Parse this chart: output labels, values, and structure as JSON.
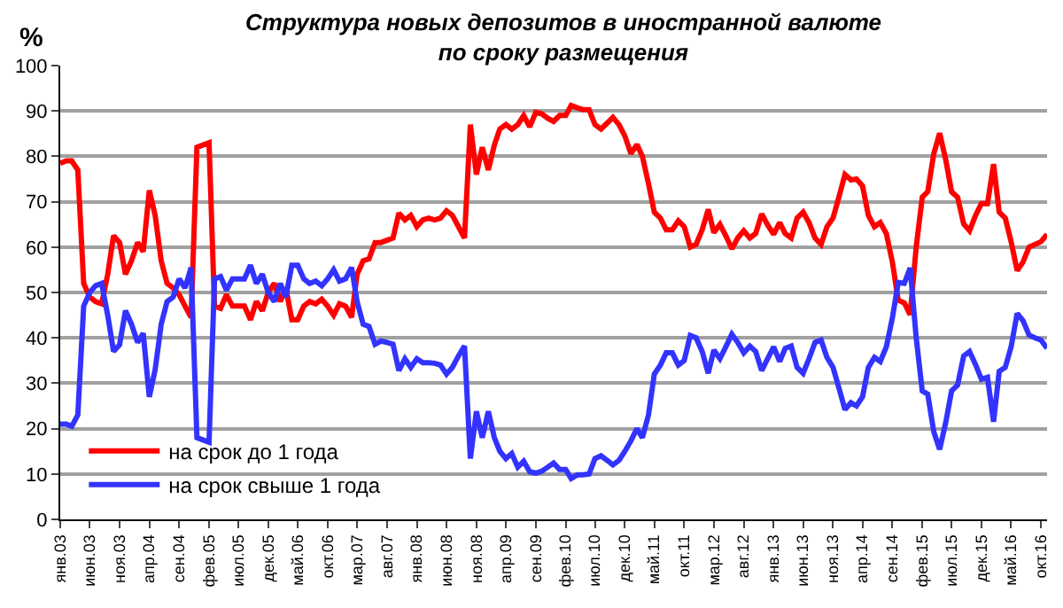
{
  "chart_data": {
    "type": "line",
    "title": "Структура новых депозитов в иностранной валюте\nпо сроку размещения",
    "ylabel": "%",
    "x": [
      "2003-01",
      "2003-02",
      "2003-03",
      "2003-04",
      "2003-05",
      "2003-06",
      "2003-07",
      "2003-08",
      "2003-09",
      "2003-10",
      "2003-11",
      "2003-12",
      "2004-01",
      "2004-02",
      "2004-03",
      "2004-04",
      "2004-05",
      "2004-06",
      "2004-07",
      "2004-08",
      "2004-09",
      "2004-10",
      "2004-11",
      "2004-12",
      "2005-01",
      "2005-02",
      "2005-03",
      "2005-04",
      "2005-05",
      "2005-06",
      "2005-07",
      "2005-08",
      "2005-09",
      "2005-10",
      "2005-11",
      "2005-12",
      "2006-01",
      "2006-02",
      "2006-03",
      "2006-04",
      "2006-05",
      "2006-06",
      "2006-07",
      "2006-08",
      "2006-09",
      "2006-10",
      "2006-11",
      "2006-12",
      "2007-01",
      "2007-02",
      "2007-03",
      "2007-04",
      "2007-05",
      "2007-06",
      "2007-07",
      "2007-08",
      "2007-09",
      "2007-10",
      "2007-11",
      "2007-12",
      "2008-01",
      "2008-02",
      "2008-03",
      "2008-04",
      "2008-05",
      "2008-06",
      "2008-07",
      "2008-08",
      "2008-09",
      "2008-10",
      "2008-11",
      "2008-12",
      "2009-01",
      "2009-02",
      "2009-03",
      "2009-04",
      "2009-05",
      "2009-06",
      "2009-07",
      "2009-08",
      "2009-09",
      "2009-10",
      "2009-11",
      "2009-12",
      "2010-01",
      "2010-02",
      "2010-03",
      "2010-04",
      "2010-05",
      "2010-06",
      "2010-07",
      "2010-08",
      "2010-09",
      "2010-10",
      "2010-11",
      "2010-12",
      "2011-01",
      "2011-02",
      "2011-03",
      "2011-04",
      "2011-05",
      "2011-06",
      "2011-07",
      "2011-08",
      "2011-09",
      "2011-10",
      "2011-11",
      "2011-12",
      "2012-01",
      "2012-02",
      "2012-03",
      "2012-04",
      "2012-05",
      "2012-06",
      "2012-07",
      "2012-08",
      "2012-09",
      "2012-10",
      "2012-11",
      "2012-12",
      "2013-01",
      "2013-02",
      "2013-03",
      "2013-04",
      "2013-05",
      "2013-06",
      "2013-07",
      "2013-08",
      "2013-09",
      "2013-10",
      "2013-11",
      "2013-12",
      "2014-01",
      "2014-02",
      "2014-03",
      "2014-04",
      "2014-05",
      "2014-06",
      "2014-07",
      "2014-08",
      "2014-09",
      "2014-10",
      "2014-11",
      "2014-12",
      "2015-01",
      "2015-02",
      "2015-03",
      "2015-04",
      "2015-05",
      "2015-06",
      "2015-07",
      "2015-08",
      "2015-09",
      "2015-10",
      "2015-11",
      "2015-12",
      "2016-01",
      "2016-02",
      "2016-03",
      "2016-04",
      "2016-05",
      "2016-06",
      "2016-07",
      "2016-08",
      "2016-09",
      "2016-10",
      "2016-11"
    ],
    "series": [
      {
        "name": "на срок до 1 года",
        "color": "#ff0000",
        "values": [
          78.5,
          79,
          79,
          77,
          52,
          49,
          48,
          47.5,
          54,
          62.5,
          61,
          54,
          57,
          61,
          59,
          72.5,
          67,
          57,
          52,
          51,
          49.5,
          47,
          44.5,
          82,
          82.5,
          83,
          47,
          46.5,
          49.5,
          47,
          47,
          47,
          44,
          48,
          46,
          50,
          52,
          48,
          51,
          44,
          44,
          47,
          48,
          47.5,
          48.5,
          47,
          45,
          47.5,
          47,
          44.5,
          54,
          57,
          57.4,
          61,
          61,
          61.5,
          62,
          67.5,
          66,
          67,
          64.5,
          66,
          66.4,
          66,
          66.4,
          68,
          67,
          64.5,
          62,
          87,
          76,
          82,
          77,
          82.5,
          86,
          87,
          86,
          87,
          89,
          86.5,
          89.7,
          89.4,
          88.4,
          87.7,
          89,
          89,
          91.2,
          90.7,
          90.3,
          90.3,
          87,
          86,
          87.3,
          88.6,
          87,
          84.5,
          80.6,
          82.6,
          80,
          74,
          67.7,
          66.4,
          63.8,
          63.8,
          65.8,
          64.5,
          60,
          60.6,
          63.8,
          68.3,
          63.2,
          65,
          62.5,
          59.6,
          62,
          63.6,
          62,
          63,
          67.3,
          64.9,
          62.8,
          65.4,
          63,
          62,
          66.4,
          67.7,
          65.4,
          62,
          60.6,
          64.5,
          66.4,
          71,
          76,
          74.8,
          75,
          73.5,
          67,
          64.5,
          65.4,
          63,
          56.7,
          48.3,
          47.7,
          45.1,
          60,
          71,
          72.2,
          80.6,
          85.1,
          79.3,
          72.2,
          71,
          65.1,
          63.6,
          67,
          69.6,
          69.6,
          78.3,
          67.7,
          66.4,
          61.2,
          54.8,
          56.7,
          60,
          60.6,
          61.2,
          62.8
        ]
      },
      {
        "name": "на срок свыше 1 года",
        "color": "#3333ff",
        "values": [
          21,
          21,
          20.5,
          23,
          47,
          50,
          51.5,
          52,
          45,
          37,
          38.5,
          46,
          43,
          39,
          41,
          27,
          33,
          43,
          48,
          49,
          53,
          51,
          55.5,
          18,
          17.5,
          17,
          53,
          53.5,
          50.5,
          53,
          53,
          53,
          56,
          52,
          54,
          50,
          48,
          52,
          49,
          56,
          56,
          53,
          52,
          52.5,
          51.5,
          53,
          55,
          52.5,
          53,
          55.5,
          48,
          43,
          42.5,
          38.6,
          39.3,
          39,
          38.6,
          32.8,
          35.4,
          33.5,
          35.4,
          34.5,
          34.5,
          34.4,
          34,
          32,
          33.5,
          36,
          38.2,
          13.4,
          23.8,
          18,
          23.8,
          18,
          15,
          13.4,
          14.5,
          11.5,
          12.8,
          10.5,
          10.2,
          10.6,
          11.5,
          12.4,
          11,
          11,
          9,
          9.8,
          9.8,
          10,
          13.4,
          14,
          13,
          12,
          13,
          15,
          17.3,
          20,
          18,
          23,
          32,
          34,
          36.7,
          36.7,
          34,
          35,
          40.5,
          40,
          37,
          32.2,
          37.3,
          35.4,
          38,
          40.8,
          39,
          36.7,
          38.2,
          37,
          32.8,
          35.4,
          38,
          34.8,
          37.7,
          38.2,
          33.5,
          32.2,
          35.4,
          39,
          39.5,
          35.7,
          33.5,
          29,
          24.2,
          25.7,
          25,
          27,
          33.5,
          35.7,
          34.8,
          38,
          44.4,
          52.2,
          52,
          55.4,
          40,
          28.3,
          27.6,
          19.3,
          15.4,
          21.3,
          28.3,
          29.6,
          36,
          37,
          34.1,
          30.9,
          31.3,
          21.5,
          32.6,
          33.5,
          38,
          45.4,
          43.8,
          40.6,
          40,
          39.5,
          37.7
        ]
      }
    ],
    "xlim": [
      "2003-01",
      "2016-11"
    ],
    "xticks": [
      {
        "value": "2003-01",
        "label": "янв.03"
      },
      {
        "value": "2003-06",
        "label": "июн.03"
      },
      {
        "value": "2003-11",
        "label": "ноя.03"
      },
      {
        "value": "2004-04",
        "label": "апр.04"
      },
      {
        "value": "2004-09",
        "label": "сен.04"
      },
      {
        "value": "2005-02",
        "label": "фев.05"
      },
      {
        "value": "2005-07",
        "label": "июл.05"
      },
      {
        "value": "2005-12",
        "label": "дек.05"
      },
      {
        "value": "2006-05",
        "label": "май.06"
      },
      {
        "value": "2006-10",
        "label": "окт.06"
      },
      {
        "value": "2007-03",
        "label": "мар.07"
      },
      {
        "value": "2007-08",
        "label": "авг.07"
      },
      {
        "value": "2008-01",
        "label": "янв.08"
      },
      {
        "value": "2008-06",
        "label": "июн.08"
      },
      {
        "value": "2008-11",
        "label": "ноя.08"
      },
      {
        "value": "2009-04",
        "label": "апр.09"
      },
      {
        "value": "2009-09",
        "label": "сен.09"
      },
      {
        "value": "2010-02",
        "label": "фев.10"
      },
      {
        "value": "2010-07",
        "label": "июл.10"
      },
      {
        "value": "2010-12",
        "label": "дек.10"
      },
      {
        "value": "2011-05",
        "label": "май.11"
      },
      {
        "value": "2011-10",
        "label": "окт.11"
      },
      {
        "value": "2012-03",
        "label": "мар.12"
      },
      {
        "value": "2012-08",
        "label": "авг.12"
      },
      {
        "value": "2013-01",
        "label": "янв.13"
      },
      {
        "value": "2013-06",
        "label": "июн.13"
      },
      {
        "value": "2013-11",
        "label": "ноя.13"
      },
      {
        "value": "2014-04",
        "label": "апр.14"
      },
      {
        "value": "2014-09",
        "label": "сен.14"
      },
      {
        "value": "2015-02",
        "label": "фев.15"
      },
      {
        "value": "2015-07",
        "label": "июл.15"
      },
      {
        "value": "2015-12",
        "label": "дек.15"
      },
      {
        "value": "2016-05",
        "label": "май.16"
      },
      {
        "value": "2016-10",
        "label": "окт.16"
      }
    ],
    "ylim": [
      0,
      100
    ],
    "yticks": [
      0,
      10,
      20,
      30,
      40,
      50,
      60,
      70,
      80,
      90,
      100
    ],
    "grid": "y",
    "legend": "bottom left",
    "marker": "none",
    "line_style": "solid"
  }
}
